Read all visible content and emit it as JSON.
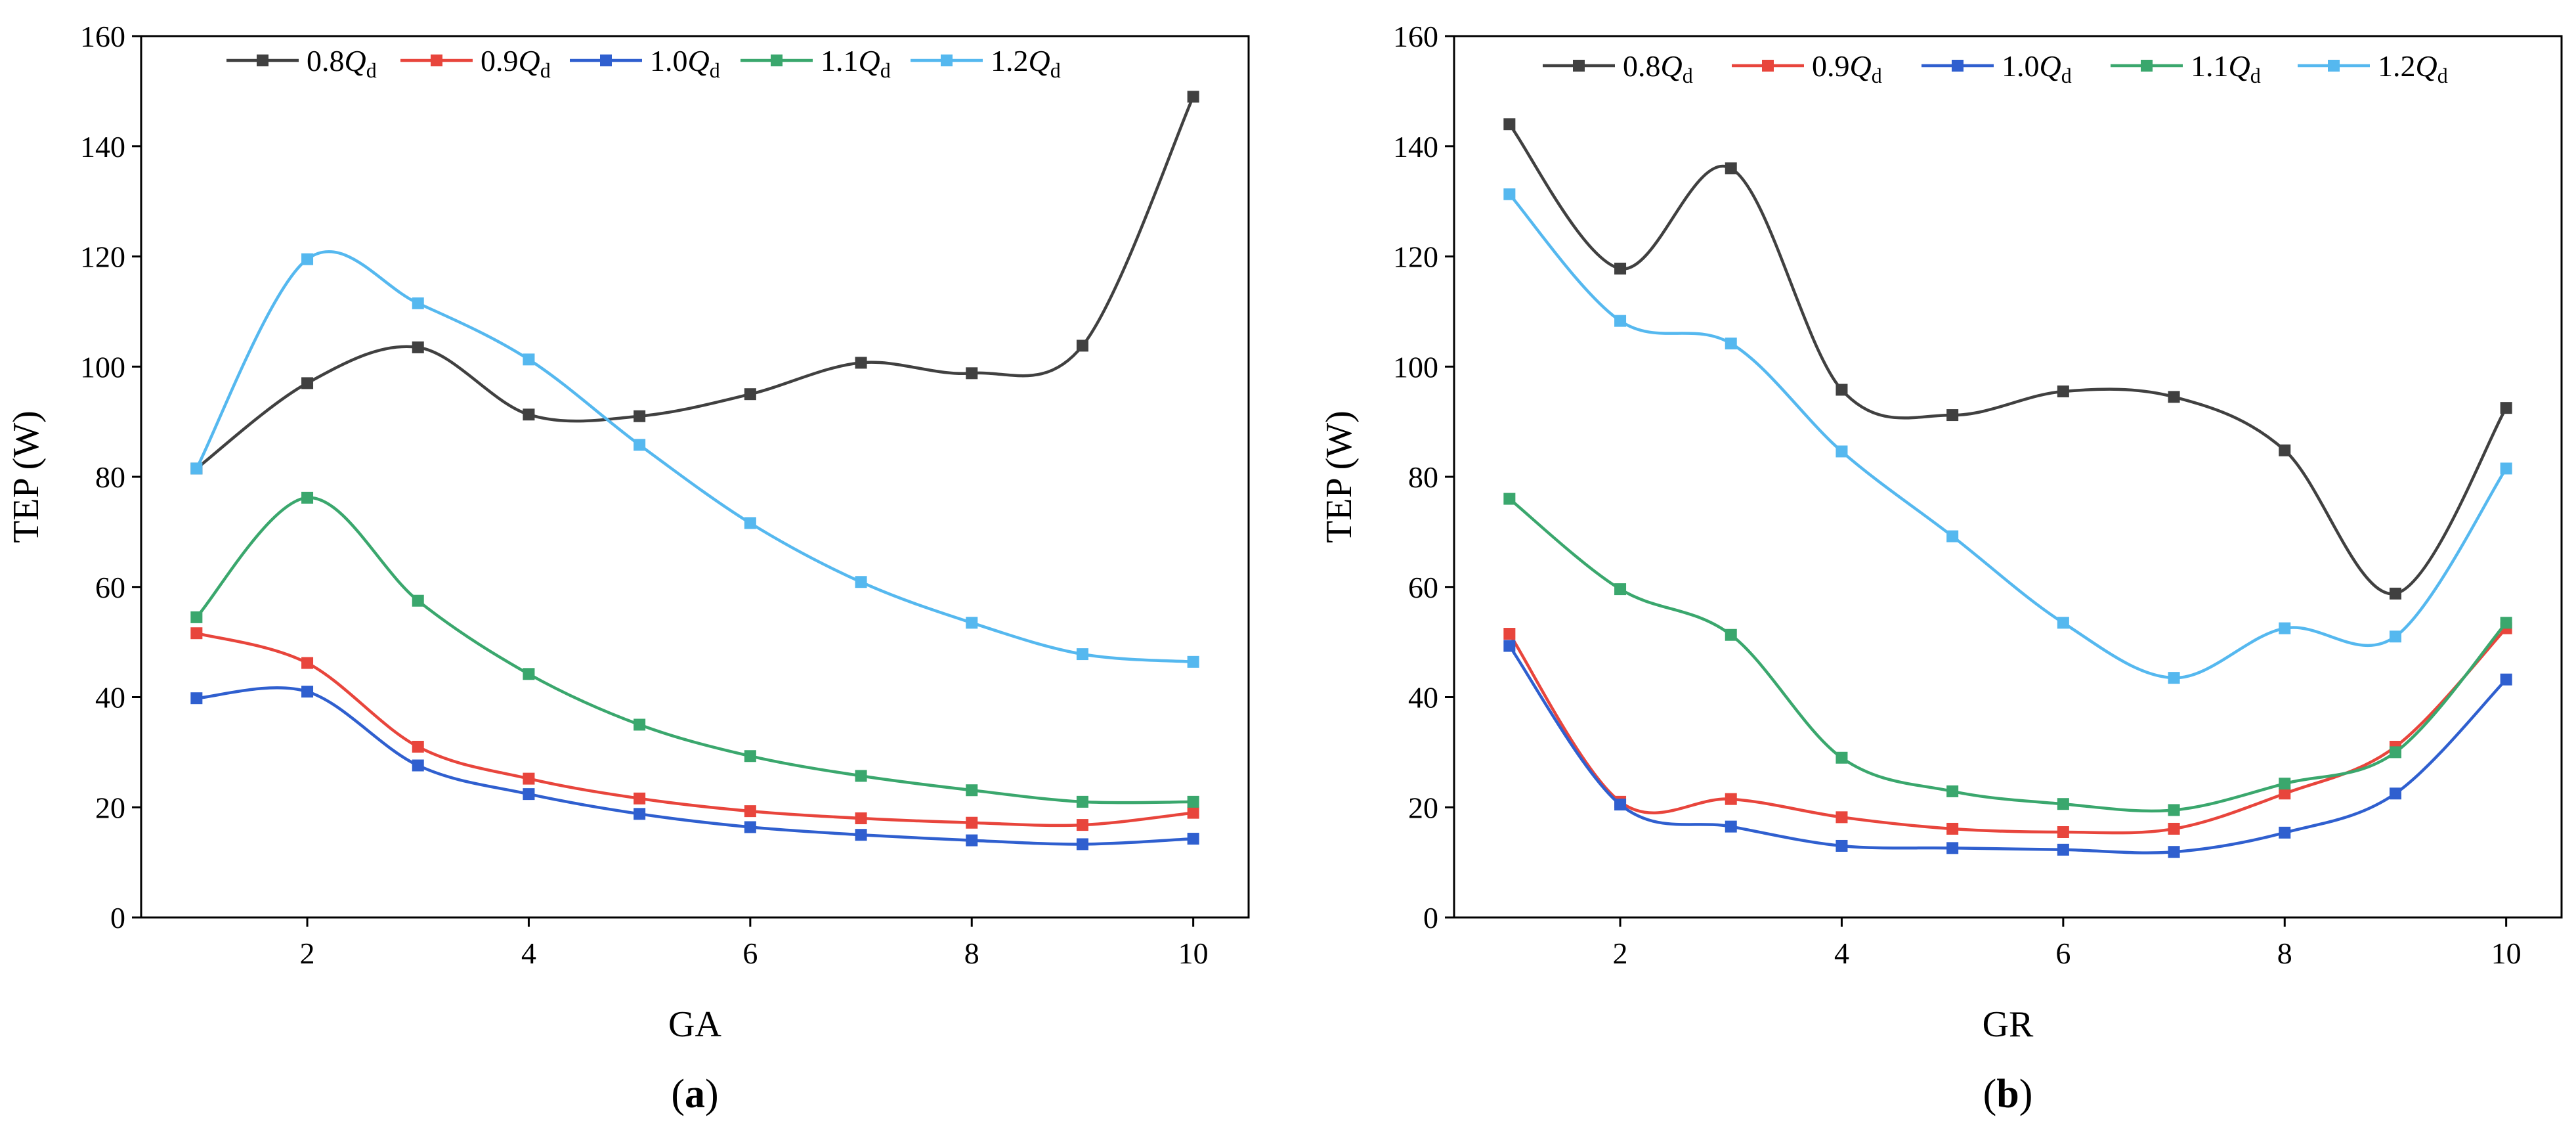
{
  "figure": {
    "panel_labels": [
      {
        "open": "(",
        "letter": "a",
        "close": ")"
      },
      {
        "open": "(",
        "letter": "b",
        "close": ")"
      }
    ]
  },
  "chart_data": [
    {
      "type": "line",
      "title": "",
      "xlabel": "GA",
      "ylabel": "TEP (W)",
      "xlim": [
        0.5,
        10.5
      ],
      "ylim": [
        0,
        160
      ],
      "xticks": [
        2,
        4,
        6,
        8,
        10
      ],
      "yticks": [
        0,
        20,
        40,
        60,
        80,
        100,
        120,
        140,
        160
      ],
      "grid": false,
      "legend_position": "top",
      "x": [
        1,
        2,
        3,
        4,
        5,
        6,
        7,
        8,
        9,
        10
      ],
      "series": [
        {
          "name": "0.8",
          "name_italic": "Q",
          "name_sub": "d",
          "color": "#404040",
          "values": [
            81.5,
            97,
            103.5,
            91.3,
            91,
            95,
            100.7,
            98.8,
            103.8,
            149
          ]
        },
        {
          "name": "0.9",
          "name_italic": "Q",
          "name_sub": "d",
          "color": "#e8453c",
          "values": [
            51.6,
            46.2,
            31,
            25.2,
            21.6,
            19.3,
            18,
            17.2,
            16.8,
            19
          ]
        },
        {
          "name": "1.0",
          "name_italic": "Q",
          "name_sub": "d",
          "color": "#2f5fcf",
          "values": [
            39.8,
            41,
            27.6,
            22.4,
            18.8,
            16.4,
            15,
            14,
            13.3,
            14.3
          ]
        },
        {
          "name": "1.1",
          "name_italic": "Q",
          "name_sub": "d",
          "color": "#3aa76d",
          "values": [
            54.5,
            76.2,
            57.5,
            44.2,
            35,
            29.3,
            25.7,
            23.1,
            21,
            21
          ]
        },
        {
          "name": "1.2",
          "name_italic": "Q",
          "name_sub": "d",
          "color": "#55b8ef",
          "values": [
            81.5,
            119.5,
            111.5,
            101.3,
            85.8,
            71.6,
            60.9,
            53.5,
            47.8,
            46.4
          ]
        }
      ]
    },
    {
      "type": "line",
      "title": "",
      "xlabel": "GR",
      "ylabel": "TEP (W)",
      "xlim": [
        0.5,
        10.5
      ],
      "ylim": [
        0,
        160
      ],
      "xticks": [
        2,
        4,
        6,
        8,
        10
      ],
      "yticks": [
        0,
        20,
        40,
        60,
        80,
        100,
        120,
        140,
        160
      ],
      "grid": false,
      "legend_position": "top",
      "x": [
        1,
        2,
        3,
        4,
        5,
        6,
        7,
        8,
        9,
        10
      ],
      "series": [
        {
          "name": "0.8",
          "name_italic": "Q",
          "name_sub": "d",
          "color": "#404040",
          "values": [
            144,
            117.8,
            136,
            95.8,
            91.2,
            95.5,
            94.5,
            84.8,
            58.8,
            92.5
          ]
        },
        {
          "name": "0.9",
          "name_italic": "Q",
          "name_sub": "d",
          "color": "#e8453c",
          "values": [
            51.5,
            21,
            21.5,
            18.2,
            16.1,
            15.5,
            16.1,
            22.5,
            31,
            52.5
          ]
        },
        {
          "name": "1.0",
          "name_italic": "Q",
          "name_sub": "d",
          "color": "#2f5fcf",
          "values": [
            49.3,
            20.5,
            16.5,
            13,
            12.6,
            12.3,
            11.9,
            15.4,
            22.5,
            43.2
          ]
        },
        {
          "name": "1.1",
          "name_italic": "Q",
          "name_sub": "d",
          "color": "#3aa76d",
          "values": [
            76,
            59.6,
            51.3,
            29,
            22.9,
            20.6,
            19.5,
            24.3,
            30,
            53.5
          ]
        },
        {
          "name": "1.2",
          "name_italic": "Q",
          "name_sub": "d",
          "color": "#55b8ef",
          "values": [
            131.3,
            108.3,
            104.2,
            84.6,
            69.2,
            53.5,
            43.5,
            52.5,
            51,
            81.5
          ]
        }
      ]
    }
  ]
}
